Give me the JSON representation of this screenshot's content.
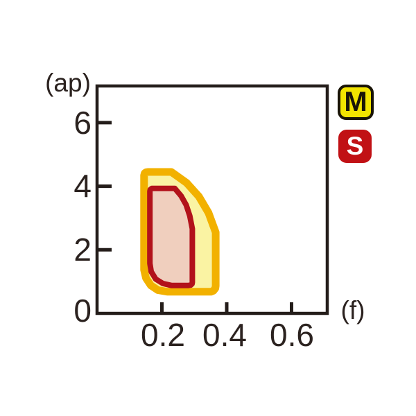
{
  "page": {
    "background": "#FFFFFF",
    "description": "Cutting application range chart: depth of cut (ap) vs feed (f) with M and S workpiece-material regions"
  },
  "chart_data": {
    "type": "area",
    "title": "",
    "xlabel": "(f)",
    "ylabel": "(ap)",
    "xlim": [
      0,
      0.71
    ],
    "ylim": [
      0,
      7.15
    ],
    "grid": false,
    "legend_position": "top-right outside",
    "axis_color": "#241d1a",
    "text_color": "#2b221f",
    "x_ticks": {
      "values": [
        0.2,
        0.4,
        0.6
      ],
      "labels": [
        "0.2",
        "0.4",
        "0.6"
      ]
    },
    "y_ticks": {
      "values": [
        0,
        2,
        4,
        6
      ],
      "labels": [
        "0",
        "2",
        "4",
        "6"
      ]
    },
    "series": [
      {
        "name": "M",
        "fill": "#faf3a3",
        "stroke": "#f2b100",
        "stroke_width": 11,
        "f_range": [
          0.13,
          0.38
        ],
        "ap_range": [
          0.55,
          4.55
        ],
        "outline": [
          [
            0.158,
            4.45
          ],
          [
            0.229,
            4.45
          ],
          [
            0.276,
            4.11
          ],
          [
            0.314,
            3.68
          ],
          [
            0.344,
            3.16
          ],
          [
            0.366,
            2.55
          ],
          [
            0.366,
            0.87
          ],
          [
            0.365,
            0.79
          ],
          [
            0.359,
            0.71
          ],
          [
            0.351,
            0.68
          ],
          [
            0.218,
            0.68
          ],
          [
            0.188,
            0.73
          ],
          [
            0.166,
            0.88
          ],
          [
            0.151,
            1.11
          ],
          [
            0.145,
            1.37
          ],
          [
            0.145,
            4.34
          ],
          [
            0.147,
            4.41
          ],
          [
            0.151,
            4.44
          ]
        ]
      },
      {
        "name": "S",
        "fill": "#f0cfbe",
        "stroke": "#b2121b",
        "stroke_width": 8,
        "f_range": [
          0.15,
          0.3
        ],
        "ap_range": [
          0.8,
          4.0
        ],
        "outline": [
          [
            0.169,
            3.93
          ],
          [
            0.24,
            3.93
          ],
          [
            0.259,
            3.7
          ],
          [
            0.275,
            3.41
          ],
          [
            0.286,
            3.07
          ],
          [
            0.294,
            2.66
          ],
          [
            0.294,
            0.98
          ],
          [
            0.293,
            0.93
          ],
          [
            0.289,
            0.89
          ],
          [
            0.282,
            0.88
          ],
          [
            0.229,
            0.88
          ],
          [
            0.203,
            0.94
          ],
          [
            0.181,
            1.08
          ],
          [
            0.167,
            1.31
          ],
          [
            0.163,
            1.57
          ],
          [
            0.163,
            3.84
          ],
          [
            0.164,
            3.89
          ],
          [
            0.166,
            3.91
          ]
        ]
      }
    ],
    "legend": [
      {
        "label": "M",
        "bg": "#f2e400",
        "text_color": "#191407",
        "border_color": "#191407"
      },
      {
        "label": "S",
        "bg": "#c11115",
        "text_color": "#ffffff",
        "border_color": "#c11115"
      }
    ]
  }
}
